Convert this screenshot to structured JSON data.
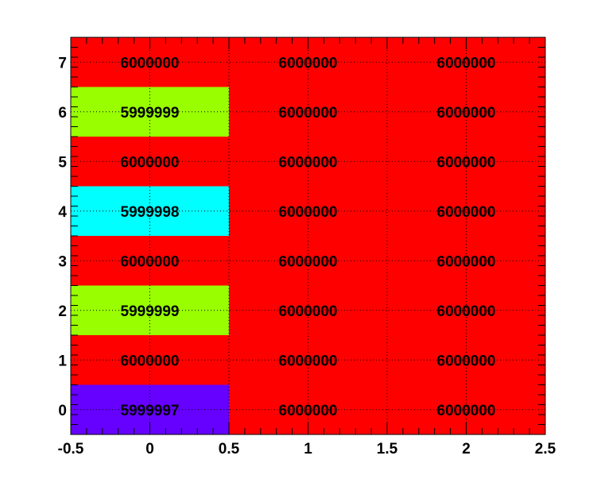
{
  "chart_data": {
    "type": "heatmap",
    "x_bins": [
      0,
      1,
      2
    ],
    "y_bins": [
      0,
      1,
      2,
      3,
      4,
      5,
      6,
      7
    ],
    "xlim": [
      -0.5,
      2.5
    ],
    "ylim": [
      -0.5,
      7.5
    ],
    "x_ticks": [
      "-0.5",
      "0",
      "0.5",
      "1",
      "1.5",
      "2",
      "2.5"
    ],
    "x_tick_values": [
      -0.5,
      0,
      0.5,
      1,
      1.5,
      2,
      2.5
    ],
    "y_ticks": [
      "0",
      "1",
      "2",
      "3",
      "4",
      "5",
      "6",
      "7"
    ],
    "y_tick_values": [
      0,
      1,
      2,
      3,
      4,
      5,
      6,
      7
    ],
    "grid": true,
    "values": [
      [
        5999997,
        6000000,
        6000000
      ],
      [
        6000000,
        6000000,
        6000000
      ],
      [
        5999999,
        6000000,
        6000000
      ],
      [
        6000000,
        6000000,
        6000000
      ],
      [
        5999998,
        6000000,
        6000000
      ],
      [
        6000000,
        6000000,
        6000000
      ],
      [
        5999999,
        6000000,
        6000000
      ],
      [
        6000000,
        6000000,
        6000000
      ]
    ],
    "colors": {
      "5999997": "#6600ff",
      "5999998": "#00ffff",
      "5999999": "#99ff00",
      "6000000": "#ff0000"
    },
    "title": "",
    "xlabel": "",
    "ylabel": ""
  }
}
